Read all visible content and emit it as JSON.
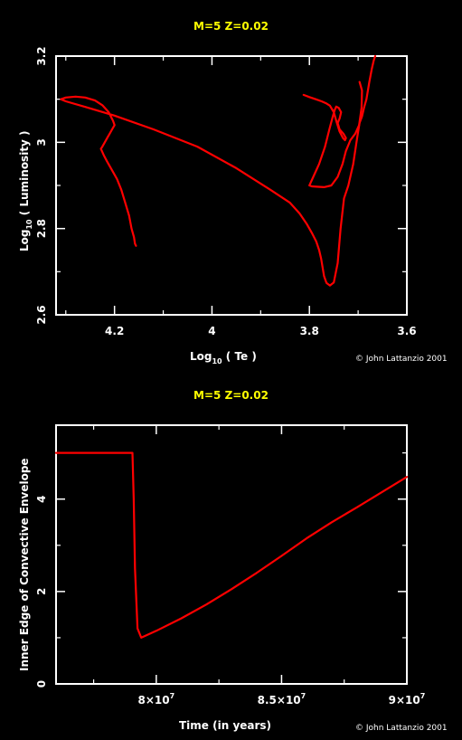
{
  "chart_data": [
    {
      "type": "line",
      "title": "M=5 Z=0.02",
      "xlabel": "Log",
      "xlabel_sub": "10",
      "xlabel_rest": " ( Te )",
      "ylabel": "Log",
      "ylabel_sub": "10",
      "ylabel_rest": " ( Luminosity )",
      "credit": "© John Lattanzio 2001",
      "xlim": [
        4.32,
        3.6
      ],
      "ylim": [
        2.6,
        3.2
      ],
      "x_ticks": [
        4.2,
        4,
        3.8,
        3.6
      ],
      "x_tick_labels": [
        "4.2",
        "4",
        "3.8",
        "3.6"
      ],
      "y_ticks": [
        2.6,
        2.8,
        3,
        3.2
      ],
      "y_tick_labels": [
        "2.6",
        "2.8",
        "3",
        "3.2"
      ],
      "series": [
        {
          "color": "#ff0000",
          "x": [
            4.156,
            4.158,
            4.16,
            4.165,
            4.17,
            4.178,
            4.186,
            4.195,
            4.205,
            4.215,
            4.222,
            4.226,
            4.228,
            4.225,
            4.22,
            4.214,
            4.21,
            4.205,
            4.2,
            4.203,
            4.212,
            4.225,
            4.24,
            4.26,
            4.28,
            4.3,
            4.31,
            4.3,
            4.26,
            4.2,
            4.12,
            4.03,
            3.95,
            3.88,
            3.84,
            3.82,
            3.805,
            3.795,
            3.786,
            3.78,
            3.776,
            3.773,
            3.77,
            3.765,
            3.758,
            3.75,
            3.742,
            3.736,
            3.729,
            3.72,
            3.71,
            3.702,
            3.697,
            3.692,
            3.688,
            3.683,
            3.677,
            3.672,
            3.668,
            3.665
          ],
          "y": [
            2.76,
            2.765,
            2.78,
            2.8,
            2.83,
            2.86,
            2.89,
            2.915,
            2.935,
            2.955,
            2.97,
            2.98,
            2.985,
            2.99,
            3.0,
            3.012,
            3.02,
            3.03,
            3.04,
            3.05,
            3.07,
            3.086,
            3.097,
            3.104,
            3.106,
            3.104,
            3.1,
            3.095,
            3.082,
            3.062,
            3.03,
            2.99,
            2.94,
            2.89,
            2.86,
            2.835,
            2.81,
            2.79,
            2.77,
            2.75,
            2.73,
            2.71,
            2.69,
            2.674,
            2.668,
            2.675,
            2.72,
            2.8,
            2.87,
            2.9,
            2.95,
            3.01,
            3.045,
            3.06,
            3.08,
            3.1,
            3.14,
            3.17,
            3.19,
            3.2
          ]
        },
        {
          "color": "#ff0000",
          "x": [
            3.812,
            3.8,
            3.787,
            3.775,
            3.765,
            3.758,
            3.75,
            3.745,
            3.738,
            3.731,
            3.727,
            3.725,
            3.73,
            3.738,
            3.742,
            3.738,
            3.735,
            3.74,
            3.745,
            3.748,
            3.752,
            3.759,
            3.768,
            3.78,
            3.792,
            3.8,
            3.795,
            3.785,
            3.77,
            3.755,
            3.742,
            3.732,
            3.725,
            3.716,
            3.706,
            3.698,
            3.693,
            3.692,
            3.697
          ],
          "y": [
            3.11,
            3.105,
            3.1,
            3.095,
            3.09,
            3.085,
            3.07,
            3.05,
            3.025,
            3.01,
            3.005,
            3.01,
            3.02,
            3.03,
            3.045,
            3.055,
            3.07,
            3.08,
            3.083,
            3.075,
            3.06,
            3.03,
            2.99,
            2.95,
            2.92,
            2.9,
            2.898,
            2.897,
            2.896,
            2.9,
            2.92,
            2.95,
            2.98,
            3.005,
            3.02,
            3.04,
            3.08,
            3.12,
            3.14
          ]
        }
      ]
    },
    {
      "type": "line",
      "title": "M=5 Z=0.02",
      "xlabel": "Time (in years)",
      "ylabel": "Inner Edge of Convective Envelope",
      "credit": "© John Lattanzio 2001",
      "xlim": [
        76000000,
        90000000
      ],
      "ylim": [
        0,
        5.6
      ],
      "x_ticks": [
        80000000,
        85000000,
        90000000
      ],
      "x_tick_labels": [
        "8×10",
        "8.5×10",
        "9×10"
      ],
      "x_tick_exp": "7",
      "y_ticks": [
        0,
        2,
        4
      ],
      "y_tick_labels": [
        "0",
        "2",
        "4"
      ],
      "series": [
        {
          "color": "#ff0000",
          "x": [
            76000000,
            78000000,
            79050000,
            79100000,
            79150000,
            79250000,
            79400000,
            80000000,
            81000000,
            82000000,
            83000000,
            84000000,
            85000000,
            86000000,
            87000000,
            88000000,
            89000000,
            90000000
          ],
          "y": [
            5.0,
            5.0,
            5.0,
            4.0,
            2.5,
            1.2,
            1.0,
            1.15,
            1.42,
            1.72,
            2.05,
            2.4,
            2.77,
            3.15,
            3.5,
            3.82,
            4.15,
            4.48
          ]
        }
      ]
    }
  ]
}
